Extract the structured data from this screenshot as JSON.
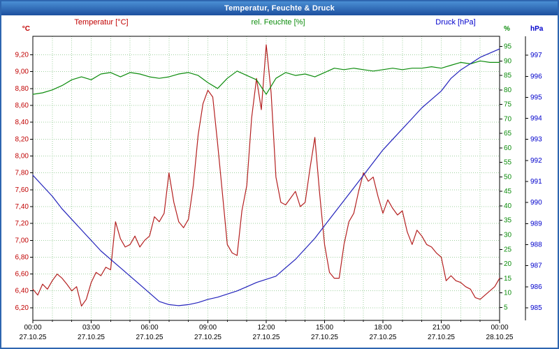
{
  "window": {
    "title": "Temperatur, Feuchte & Druck"
  },
  "chart_data": {
    "type": "line",
    "title": "Temperatur, Feuchte & Druck",
    "legend_position": "top",
    "grid": {
      "color": "#9fd09f",
      "style": "dotted",
      "vertical_every_hours": 1
    },
    "x_axis": {
      "range_hours": [
        0,
        24
      ],
      "tick_hours": [
        0,
        3,
        6,
        9,
        12,
        15,
        18,
        21,
        24
      ],
      "tick_labels": [
        "00:00",
        "03:00",
        "06:00",
        "09:00",
        "12:00",
        "15:00",
        "18:00",
        "21:00",
        "00:00"
      ],
      "date_labels": [
        "27.10.25",
        "27.10.25",
        "27.10.25",
        "27.10.25",
        "27.10.25",
        "27.10.25",
        "27.10.25",
        "27.10.25",
        "28.10.25"
      ]
    },
    "y_axes": [
      {
        "id": "temperature",
        "title": "Temperatur [°C]",
        "unit": "°C",
        "color": "#c00000",
        "min": 6.05,
        "max": 9.42,
        "tick_min": 6.2,
        "tick_max": 9.2,
        "tick_step": 0.2,
        "tick_decimals": 2,
        "decimal_comma": true,
        "side": "left"
      },
      {
        "id": "humidity",
        "title": "rel. Feuchte [%]",
        "unit": "%",
        "color": "#0c8c0c",
        "min": 0.5,
        "max": 98.5,
        "tick_min": 5,
        "tick_max": 95,
        "tick_step": 5,
        "tick_decimals": 0,
        "decimal_comma": false,
        "side": "right"
      },
      {
        "id": "pressure",
        "title": "Druck [hPa]",
        "unit": "hPa",
        "color": "#0000cc",
        "min": 984.4,
        "max": 997.9,
        "tick_min": 985,
        "tick_max": 997,
        "tick_step": 1,
        "tick_decimals": 0,
        "decimal_comma": false,
        "side": "far-right"
      }
    ],
    "series": [
      {
        "name": "Temperatur [°C]",
        "axis": "temperature",
        "color": "#b42020",
        "x_start": 0,
        "x_step": 0.25,
        "values": [
          6.42,
          6.35,
          6.48,
          6.42,
          6.52,
          6.6,
          6.55,
          6.48,
          6.4,
          6.45,
          6.22,
          6.3,
          6.5,
          6.62,
          6.58,
          6.68,
          6.65,
          7.22,
          7.02,
          6.92,
          6.95,
          7.05,
          6.92,
          7.0,
          7.05,
          7.28,
          7.22,
          7.32,
          7.8,
          7.45,
          7.22,
          7.15,
          7.25,
          7.65,
          8.25,
          8.62,
          8.78,
          8.7,
          8.15,
          7.55,
          6.95,
          6.85,
          6.82,
          7.35,
          7.65,
          8.45,
          8.92,
          8.55,
          9.32,
          8.75,
          7.75,
          7.45,
          7.42,
          7.5,
          7.58,
          7.4,
          7.45,
          7.85,
          8.22,
          7.55,
          6.95,
          6.62,
          6.55,
          6.55,
          6.95,
          7.22,
          7.32,
          7.58,
          7.8,
          7.7,
          7.75,
          7.52,
          7.32,
          7.48,
          7.38,
          7.3,
          7.35,
          7.1,
          6.95,
          7.12,
          7.05,
          6.95,
          6.92,
          6.85,
          6.8,
          6.52,
          6.58,
          6.52,
          6.5,
          6.45,
          6.42,
          6.32,
          6.3,
          6.35,
          6.4,
          6.45,
          6.55
        ]
      },
      {
        "name": "rel. Feuchte [%]",
        "axis": "humidity",
        "color": "#0c8c0c",
        "x_start": 0,
        "x_step": 0.5,
        "values": [
          78.5,
          79.0,
          80.0,
          81.5,
          83.5,
          84.5,
          83.5,
          85.5,
          86.0,
          84.5,
          86.0,
          85.5,
          84.5,
          84.0,
          84.5,
          85.5,
          86.0,
          85.0,
          82.5,
          80.5,
          84.0,
          86.5,
          85.0,
          83.5,
          78.5,
          84.0,
          86.0,
          85.0,
          85.5,
          84.5,
          86.0,
          87.5,
          87.0,
          87.5,
          87.0,
          86.5,
          87.0,
          87.5,
          87.0,
          87.5,
          87.5,
          88.0,
          87.5,
          88.5,
          89.5,
          89.0,
          90.0,
          89.5,
          89.5
        ]
      },
      {
        "name": "Druck [hPa]",
        "axis": "pressure",
        "color": "#2222bb",
        "x_start": 0,
        "x_step": 0.5,
        "values": [
          991.3,
          990.8,
          990.3,
          989.7,
          989.2,
          988.7,
          988.2,
          987.7,
          987.3,
          986.9,
          986.5,
          986.1,
          985.7,
          985.3,
          985.15,
          985.1,
          985.15,
          985.25,
          985.4,
          985.5,
          985.65,
          985.8,
          986.0,
          986.2,
          986.35,
          986.5,
          986.9,
          987.3,
          987.8,
          988.3,
          988.9,
          989.5,
          990.1,
          990.7,
          991.3,
          991.9,
          992.5,
          993.0,
          993.5,
          994.0,
          994.5,
          994.9,
          995.3,
          995.9,
          996.3,
          996.6,
          996.9,
          997.1,
          997.3
        ]
      }
    ]
  }
}
